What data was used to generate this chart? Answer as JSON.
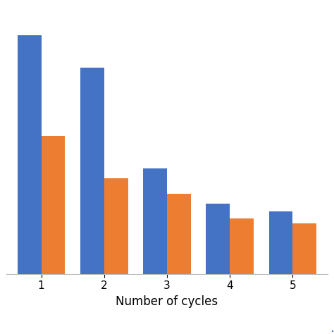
{
  "categories": [
    1,
    2,
    3,
    4,
    5
  ],
  "blue_values": [
    95,
    82,
    42,
    28,
    25
  ],
  "orange_values": [
    55,
    38,
    32,
    22,
    20
  ],
  "blue_color": "#4472C4",
  "orange_color": "#ED7D31",
  "xlabel": "Number of cycles",
  "ylabel": "",
  "ylim": [
    0,
    105
  ],
  "bar_width": 0.38,
  "grid_color": "#D9D9D9",
  "background_color": "#FFFFFF",
  "xlabel_fontsize": 12,
  "tick_fontsize": 11
}
